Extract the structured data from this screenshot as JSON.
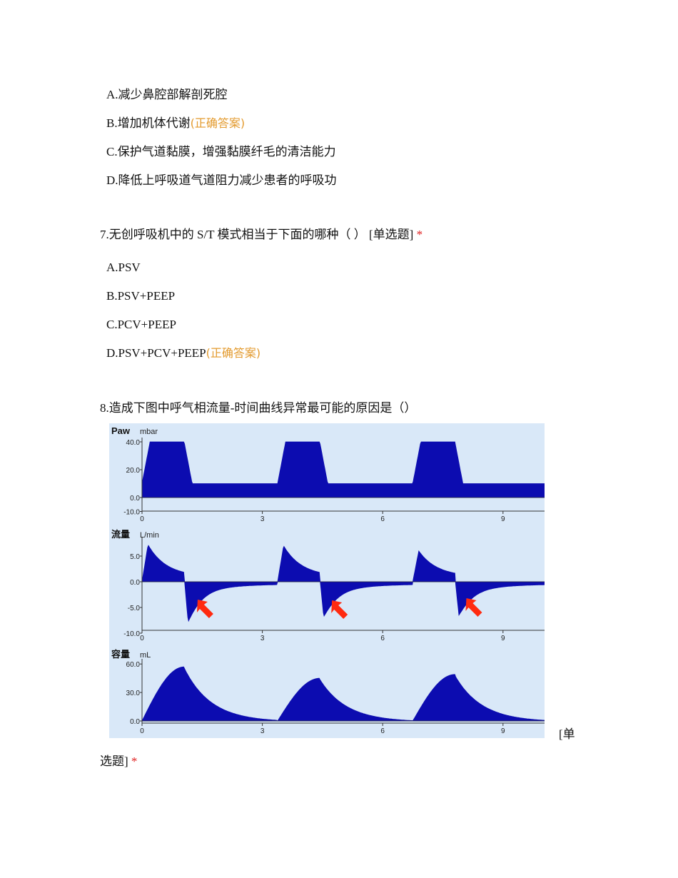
{
  "q6": {
    "options": [
      {
        "text": "A.减少鼻腔部解剖死腔",
        "correct": ""
      },
      {
        "text": "B.增加机体代谢",
        "correct": "(正确答案)"
      },
      {
        "text": "C.保护气道黏膜，增强黏膜纤毛的清洁能力",
        "correct": ""
      },
      {
        "text": "D.降低上呼吸道气道阻力减少患者的呼吸功",
        "correct": ""
      }
    ]
  },
  "q7": {
    "title": "7.无创呼吸机中的 S/T 模式相当于下面的哪种（ ） [单选题]",
    "star": "*",
    "options": [
      {
        "text": "A.PSV",
        "correct": ""
      },
      {
        "text": "B.PSV+PEEP",
        "correct": ""
      },
      {
        "text": "C.PCV+PEEP",
        "correct": ""
      },
      {
        "text": "D.PSV+PCV+PEEP",
        "correct": "(正确答案)"
      }
    ]
  },
  "q8": {
    "title": "8.造成下图中呼气相流量-时间曲线异常最可能的原因是（）",
    "type_part1": "[单",
    "type_part2": "选题]",
    "star": "*"
  },
  "figure": {
    "fill_color": "#0c0cb0",
    "background": "#d9e8f8",
    "arrow_color": "#ff2a10",
    "x_ticks": [
      "0",
      "3",
      "6",
      "9"
    ],
    "panels": [
      {
        "label": "Paw",
        "unit": "mbar",
        "y_ticks": [
          "40.0",
          "20.0",
          "0.0",
          "-10.0"
        ]
      },
      {
        "label": "流量",
        "unit": "L/min",
        "y_ticks": [
          "5.0",
          "0.0",
          "-5.0",
          "-10.0"
        ]
      },
      {
        "label": "容量",
        "unit": "mL",
        "y_ticks": [
          "60.0",
          "30.0",
          "0.0"
        ]
      }
    ]
  }
}
